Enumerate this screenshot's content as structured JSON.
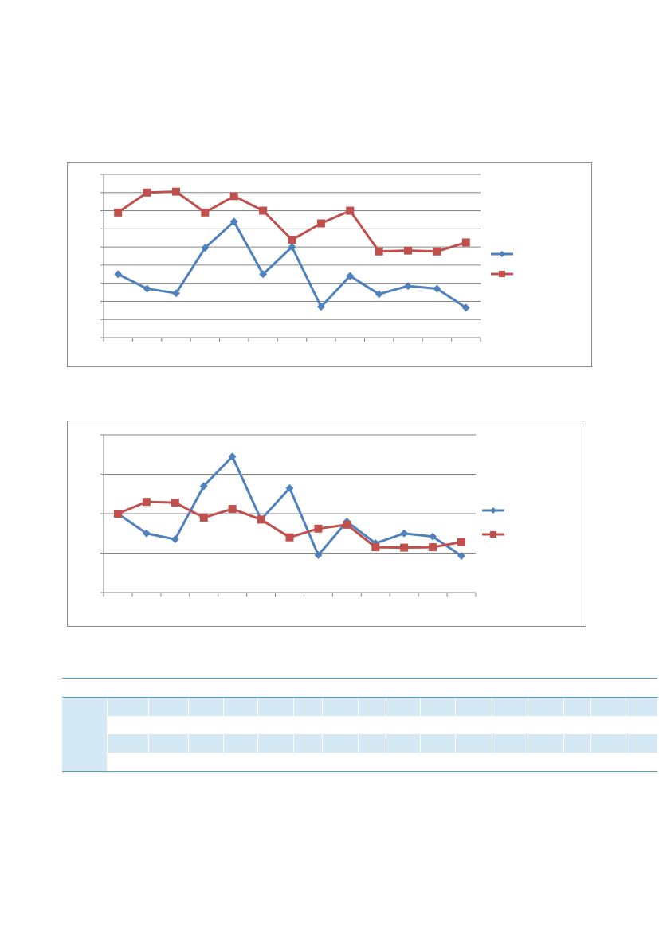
{
  "colors": {
    "series_blue": "#4f81bd",
    "series_red": "#c0504d",
    "grid": "#868686",
    "table_shade": "#d4e9f3",
    "table_rule": "#4f9ec7"
  },
  "chart_data": [
    {
      "type": "line",
      "grid": true,
      "legend": "right",
      "ylim": [
        0,
        9
      ],
      "y_gridlines": 9,
      "categories": [
        "",
        "",
        "",
        "",
        "",
        "",
        "",
        "",
        "",
        "",
        "",
        "",
        ""
      ],
      "series": [
        {
          "marker": "diamond",
          "color": "#4f81bd",
          "values": [
            3.5,
            2.7,
            2.45,
            4.95,
            6.4,
            3.5,
            5.0,
            1.7,
            3.4,
            2.4,
            2.85,
            2.7,
            1.65
          ]
        },
        {
          "marker": "square",
          "color": "#c0504d",
          "values": [
            6.9,
            8.0,
            8.05,
            6.9,
            7.8,
            7.0,
            5.4,
            6.3,
            7.0,
            4.75,
            4.8,
            4.75,
            5.25
          ]
        }
      ]
    },
    {
      "type": "line",
      "grid": true,
      "legend": "right",
      "ylim": [
        0,
        4
      ],
      "y_gridlines": 4,
      "categories": [
        "",
        "",
        "",
        "",
        "",
        "",
        "",
        "",
        "",
        "",
        "",
        "",
        ""
      ],
      "series": [
        {
          "marker": "diamond",
          "color": "#4f81bd",
          "values": [
            2.0,
            1.5,
            1.35,
            2.7,
            3.45,
            1.85,
            2.65,
            0.95,
            1.8,
            1.25,
            1.5,
            1.42,
            0.93
          ]
        },
        {
          "marker": "square",
          "color": "#c0504d",
          "values": [
            2.0,
            2.3,
            2.28,
            1.9,
            2.12,
            1.85,
            1.4,
            1.62,
            1.72,
            1.15,
            1.14,
            1.15,
            1.28
          ]
        }
      ]
    }
  ],
  "table": {
    "columns": 17,
    "rows": [
      {
        "shade": true
      },
      {
        "shade": false
      },
      {
        "shade": true
      },
      {
        "shade": false
      }
    ]
  }
}
